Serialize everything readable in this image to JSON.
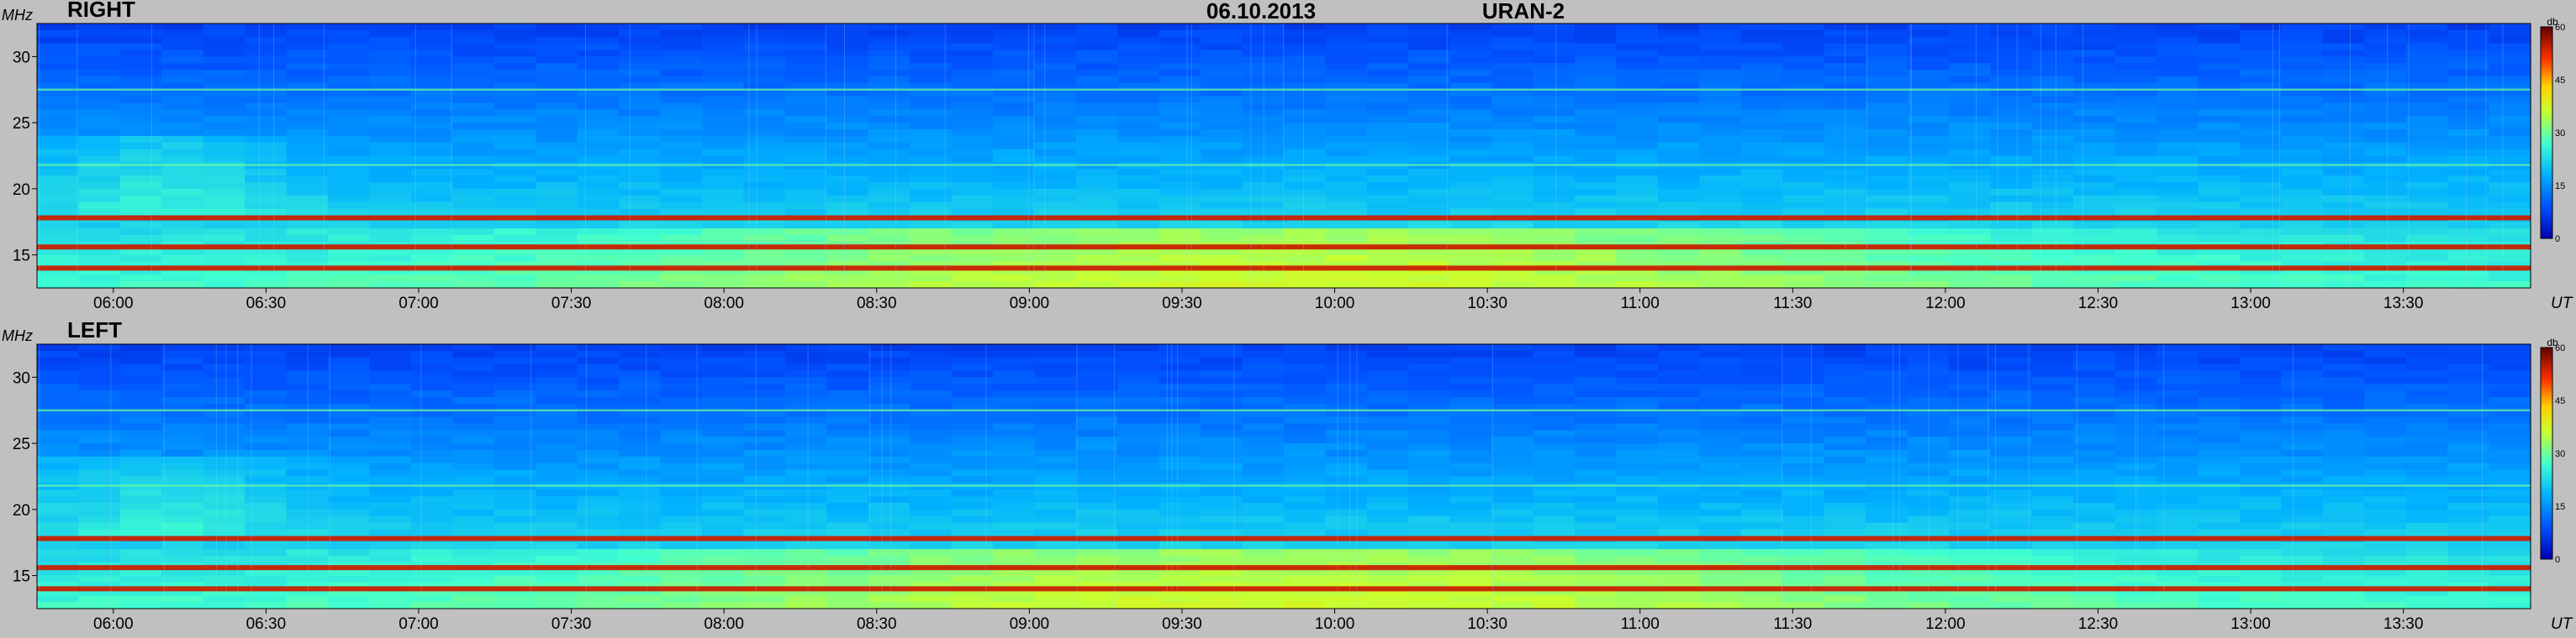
{
  "header": {
    "date": "06.10.2013",
    "instrument": "URAN-2"
  },
  "chart_data": [
    {
      "type": "heatmap",
      "title": "RIGHT",
      "ylabel": "MHz",
      "xlabel": "UT",
      "x_ticks": [
        "06:00",
        "06:30",
        "07:00",
        "07:30",
        "08:00",
        "08:30",
        "09:00",
        "09:30",
        "10:00",
        "10:30",
        "11:00",
        "11:30",
        "12:00",
        "12:30",
        "13:00",
        "13:30"
      ],
      "xlim": [
        "05:45",
        "13:55"
      ],
      "y_ticks": [
        15,
        20,
        25,
        30
      ],
      "ylim": [
        12.5,
        32.5
      ],
      "colorbar": {
        "label": "db",
        "ticks": [
          0,
          15,
          30,
          45,
          60
        ],
        "range": [
          0,
          60
        ]
      },
      "features": {
        "bright_bands_mhz": [
          14.0,
          15.6,
          17.8,
          21.8,
          27.5
        ],
        "description_free": true
      }
    },
    {
      "type": "heatmap",
      "title": "LEFT",
      "ylabel": "MHz",
      "xlabel": "UT",
      "x_ticks": [
        "06:00",
        "06:30",
        "07:00",
        "07:30",
        "08:00",
        "08:30",
        "09:00",
        "09:30",
        "10:00",
        "10:30",
        "11:00",
        "11:30",
        "12:00",
        "12:30",
        "13:00",
        "13:30"
      ],
      "xlim": [
        "05:45",
        "13:55"
      ],
      "y_ticks": [
        15,
        20,
        25,
        30
      ],
      "ylim": [
        12.5,
        32.5
      ],
      "colorbar": {
        "label": "db",
        "ticks": [
          0,
          15,
          30,
          45,
          60
        ],
        "range": [
          0,
          60
        ]
      },
      "features": {
        "bright_bands_mhz": [
          14.0,
          15.6,
          17.8,
          21.8,
          27.5
        ],
        "description_free": true
      }
    }
  ],
  "colors": {
    "background": "#c0c0c0",
    "low": "#0a2fd0",
    "mid": "#1e9fff",
    "high": "#ff2000",
    "text": "#000000"
  }
}
